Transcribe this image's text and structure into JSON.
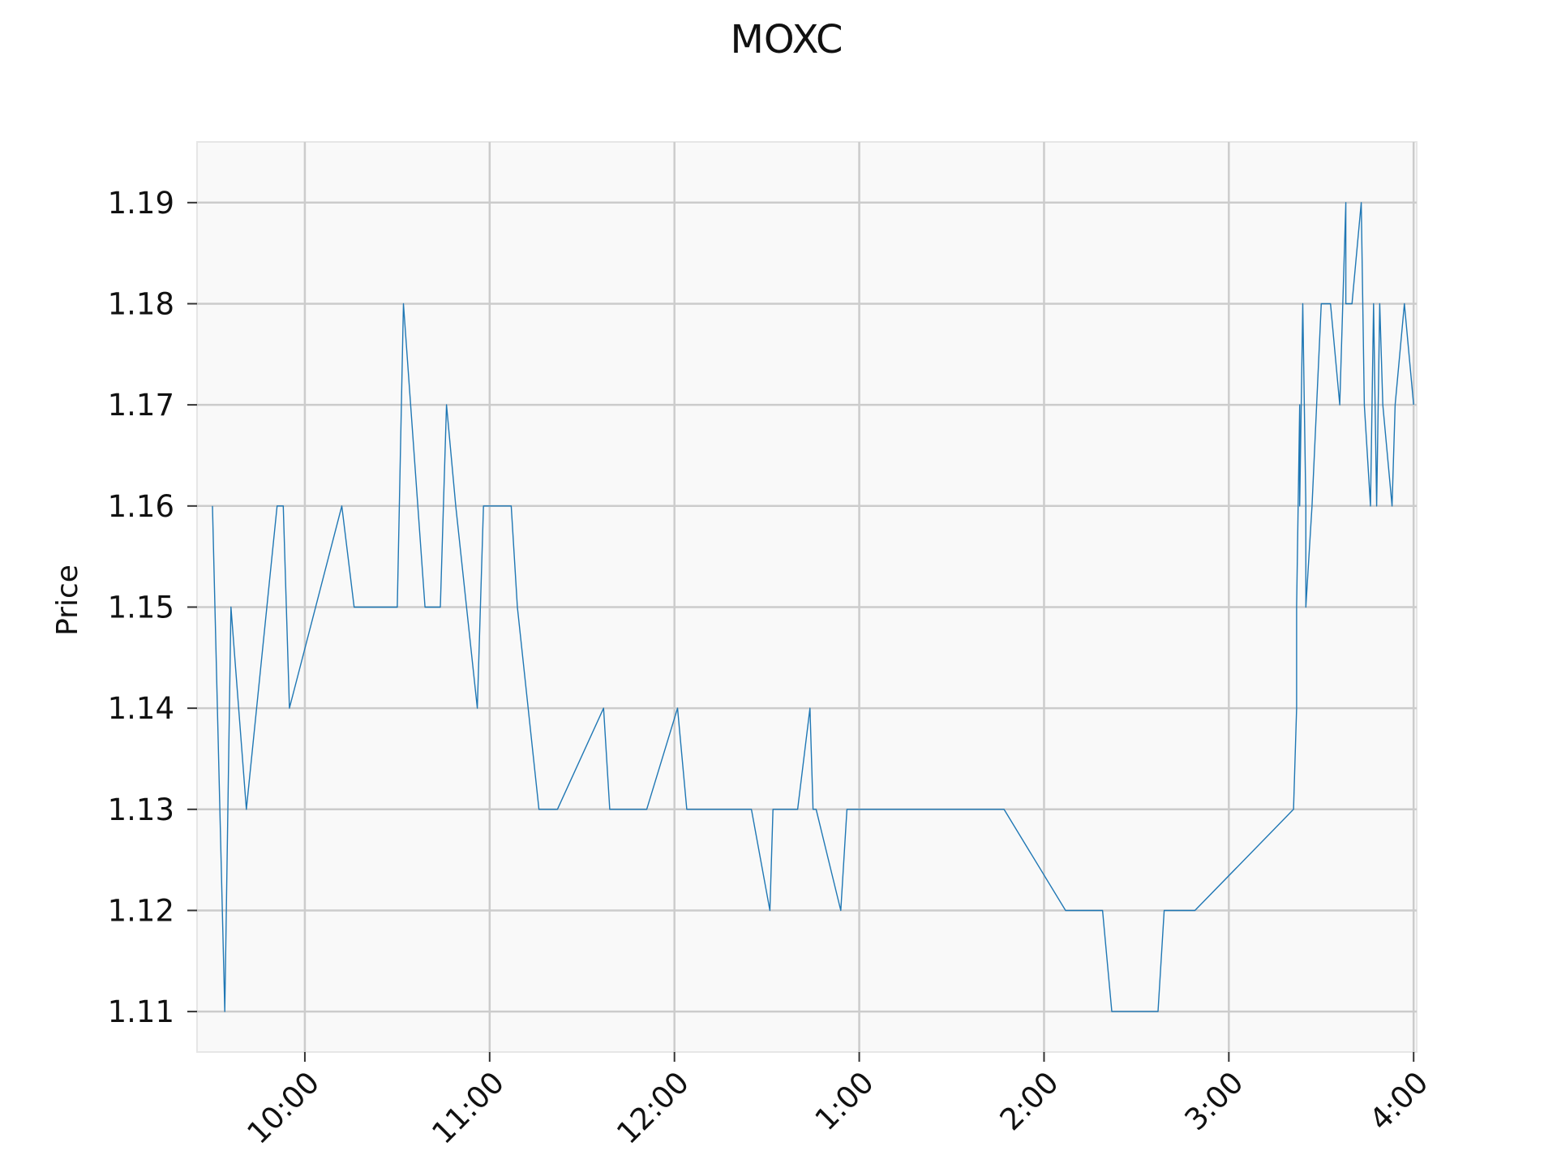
{
  "chart_data": {
    "type": "line",
    "title": "MOXC",
    "xlabel": "",
    "ylabel": "Price",
    "grid": true,
    "xlim": [
      "09:25",
      "16:01"
    ],
    "ylim": [
      1.106,
      1.196
    ],
    "x_ticks": [
      {
        "time": "10:00",
        "label": "10:00"
      },
      {
        "time": "11:00",
        "label": "11:00"
      },
      {
        "time": "12:00",
        "label": "12:00"
      },
      {
        "time": "13:00",
        "label": "1:00"
      },
      {
        "time": "14:00",
        "label": "2:00"
      },
      {
        "time": "15:00",
        "label": "3:00"
      },
      {
        "time": "16:00",
        "label": "4:00"
      }
    ],
    "y_ticks": [
      {
        "value": 1.11,
        "label": "1.11"
      },
      {
        "value": 1.12,
        "label": "1.12"
      },
      {
        "value": 1.13,
        "label": "1.13"
      },
      {
        "value": 1.14,
        "label": "1.14"
      },
      {
        "value": 1.15,
        "label": "1.15"
      },
      {
        "value": 1.16,
        "label": "1.16"
      },
      {
        "value": 1.17,
        "label": "1.17"
      },
      {
        "value": 1.18,
        "label": "1.18"
      },
      {
        "value": 1.19,
        "label": "1.19"
      }
    ],
    "series": [
      {
        "color": "#1f77b4",
        "x": [
          "09:30",
          "09:34",
          "09:36",
          "09:41",
          "09:51",
          "09:52",
          "09:53",
          "09:55",
          "10:12",
          "10:16",
          "10:30",
          "10:32",
          "10:39",
          "10:44",
          "10:46",
          "10:49",
          "10:56",
          "10:58",
          "11:07",
          "11:09",
          "11:16",
          "11:20",
          "11:22",
          "11:37",
          "11:39",
          "11:51",
          "12:01",
          "12:04",
          "12:25",
          "12:31",
          "12:32",
          "12:38",
          "12:40",
          "12:44",
          "12:45",
          "12:46",
          "12:54",
          "12:56",
          "12:57",
          "13:47",
          "14:07",
          "14:19",
          "14:22",
          "14:37",
          "14:39",
          "14:49",
          "15:21",
          "15:22",
          "15:22",
          "15:23",
          "15:23",
          "15:24",
          "15:25",
          "15:25",
          "15:27",
          "15:30",
          "15:33",
          "15:33",
          "15:36",
          "15:38",
          "15:38",
          "15:40",
          "15:43",
          "15:44",
          "15:46",
          "15:47",
          "15:48",
          "15:49",
          "15:50",
          "15:50",
          "15:53",
          "15:54",
          "15:57",
          "16:00"
        ],
        "y": [
          1.16,
          1.11,
          1.15,
          1.13,
          1.16,
          1.16,
          1.16,
          1.14,
          1.16,
          1.15,
          1.15,
          1.18,
          1.15,
          1.15,
          1.17,
          1.16,
          1.14,
          1.16,
          1.16,
          1.15,
          1.13,
          1.13,
          1.13,
          1.14,
          1.13,
          1.13,
          1.14,
          1.13,
          1.13,
          1.12,
          1.13,
          1.13,
          1.13,
          1.14,
          1.13,
          1.13,
          1.12,
          1.13,
          1.13,
          1.13,
          1.12,
          1.12,
          1.11,
          1.11,
          1.12,
          1.12,
          1.13,
          1.14,
          1.15,
          1.17,
          1.16,
          1.18,
          1.16,
          1.15,
          1.16,
          1.18,
          1.18,
          1.18,
          1.17,
          1.19,
          1.18,
          1.18,
          1.19,
          1.17,
          1.16,
          1.18,
          1.16,
          1.18,
          1.17,
          1.17,
          1.16,
          1.17,
          1.18,
          1.17
        ]
      }
    ]
  }
}
